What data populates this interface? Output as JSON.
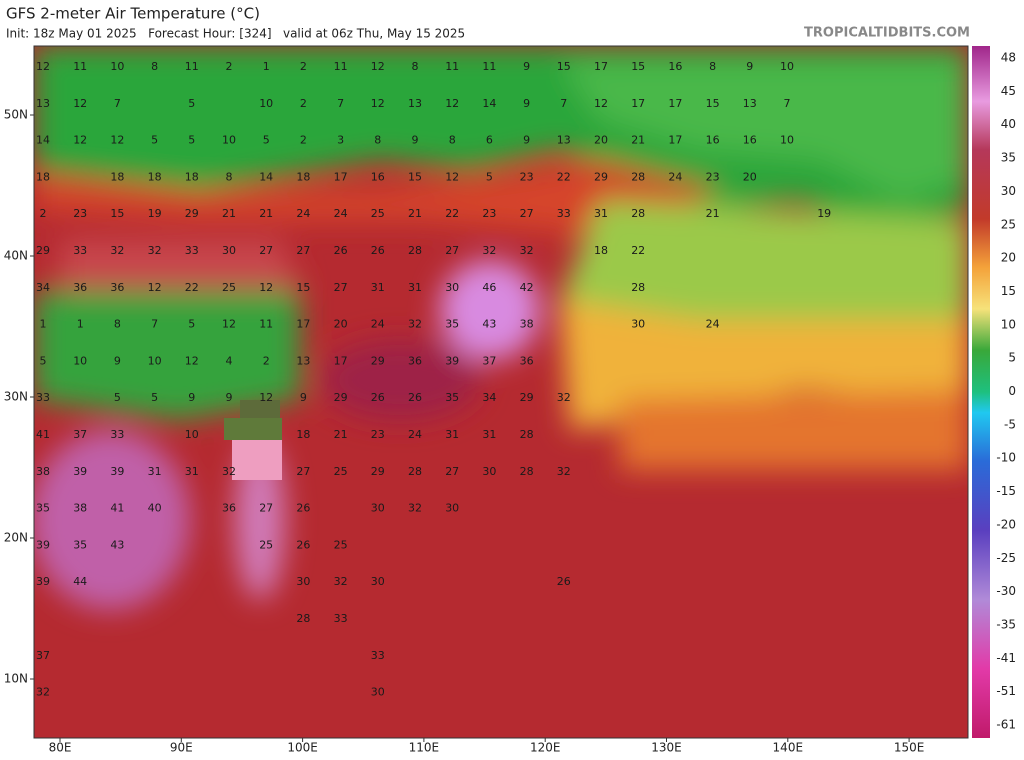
{
  "header": {
    "title": "GFS 2-meter Air Temperature (°C)",
    "subtitle": "Init: 18z May 01 2025   Forecast Hour: [324]   valid at 06z Thu, May 15 2025",
    "brand": "TROPICALTIDBITS.COM"
  },
  "map": {
    "lat_labels": [
      "50N",
      "40N",
      "30N",
      "20N",
      "10N"
    ],
    "lon_labels": [
      "80E",
      "90E",
      "100E",
      "110E",
      "120E",
      "130E",
      "140E",
      "150E"
    ],
    "rows": [
      [
        "12",
        "11",
        "10",
        "8",
        "11",
        "2",
        "1",
        "2",
        "11",
        "12",
        "8",
        "11",
        "11",
        "9",
        "15",
        "17",
        "15",
        "16",
        "8",
        "9",
        "10"
      ],
      [
        "13",
        "12",
        "7",
        null,
        "5",
        null,
        "10",
        "2",
        "7",
        "12",
        "13",
        "12",
        "14",
        "9",
        "7",
        "12",
        "17",
        "17",
        "15",
        "13",
        "7"
      ],
      [
        "14",
        "12",
        "12",
        "5",
        "5",
        "10",
        "5",
        "2",
        "3",
        "8",
        "9",
        "8",
        "6",
        "9",
        "13",
        "20",
        "21",
        "17",
        "16",
        "16",
        "10"
      ],
      [
        "18",
        null,
        "18",
        "18",
        "18",
        "8",
        "14",
        "18",
        "17",
        "16",
        "15",
        "12",
        "5",
        "23",
        "22",
        "29",
        "28",
        "24",
        "23",
        "20"
      ],
      [
        "2",
        "23",
        "15",
        "19",
        "29",
        "21",
        "21",
        "24",
        "24",
        "25",
        "21",
        "22",
        "23",
        "27",
        "33",
        "31",
        "28",
        null,
        "21",
        null,
        null,
        "19"
      ],
      [
        "29",
        "33",
        "32",
        "32",
        "33",
        "30",
        "27",
        "27",
        "26",
        "26",
        "28",
        "27",
        "32",
        "32",
        null,
        "18",
        "22"
      ],
      [
        "34",
        "36",
        "36",
        "12",
        "22",
        "25",
        "12",
        "15",
        "27",
        "31",
        "31",
        "30",
        "46",
        "42",
        null,
        null,
        "28"
      ],
      [
        "1",
        "1",
        "8",
        "7",
        "5",
        "12",
        "11",
        "17",
        "20",
        "24",
        "32",
        "35",
        "43",
        "38",
        null,
        null,
        "30",
        null,
        "24"
      ],
      [
        "5",
        "10",
        "9",
        "10",
        "12",
        "4",
        "2",
        "13",
        "17",
        "29",
        "36",
        "39",
        "37",
        "36"
      ],
      [
        "33",
        null,
        "5",
        "5",
        "9",
        "9",
        "12",
        "9",
        "29",
        "26",
        "26",
        "35",
        "34",
        "29",
        "32"
      ],
      [
        "41",
        "37",
        "33",
        null,
        "10",
        null,
        null,
        "18",
        "21",
        "23",
        "24",
        "31",
        "31",
        "28"
      ],
      [
        "38",
        "39",
        "39",
        "31",
        "31",
        "32",
        null,
        "27",
        "25",
        "29",
        "28",
        "27",
        "30",
        "28",
        "32"
      ],
      [
        "35",
        "38",
        "41",
        "40",
        null,
        "36",
        "27",
        "26",
        null,
        "30",
        "32",
        "30"
      ],
      [
        "39",
        "35",
        "43",
        null,
        null,
        null,
        "25",
        "26",
        "25"
      ],
      [
        "39",
        "44",
        null,
        null,
        null,
        null,
        null,
        "30",
        "32",
        "30",
        null,
        null,
        null,
        null,
        "26"
      ],
      [
        null,
        null,
        null,
        null,
        null,
        null,
        null,
        "28",
        "33"
      ],
      [
        "37",
        null,
        null,
        null,
        null,
        null,
        null,
        null,
        null,
        "33"
      ],
      [
        "32",
        null,
        null,
        null,
        null,
        null,
        null,
        null,
        null,
        "30"
      ]
    ]
  },
  "colorbar": {
    "labels": [
      "48",
      "45",
      "40",
      "35",
      "30",
      "25",
      "20",
      "15",
      "10",
      "5",
      "0",
      "-5",
      "-10",
      "-15",
      "-20",
      "-25",
      "-30",
      "-35",
      "-41",
      "-51",
      "-61"
    ]
  }
}
